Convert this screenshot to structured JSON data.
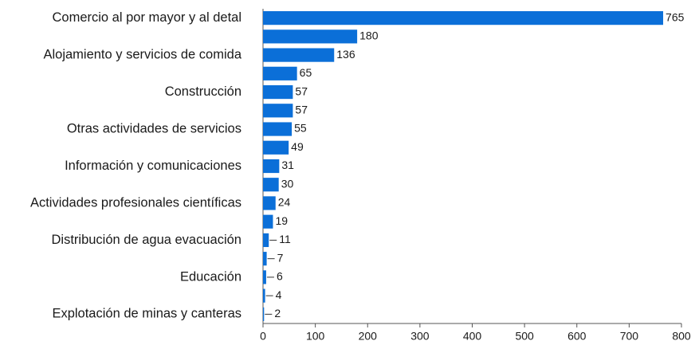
{
  "chart_data": {
    "type": "barh",
    "categories": [
      "Comercio al por mayor y al detal",
      null,
      "Alojamiento y servicios de comida",
      null,
      "Construcción",
      null,
      "Otras actividades de servicios",
      null,
      "Información y comunicaciones",
      null,
      "Actividades profesionales científicas",
      null,
      "Distribución de agua evacuación",
      null,
      "Educación",
      null,
      "Explotación de minas y canteras"
    ],
    "values": [
      765,
      180,
      136,
      65,
      57,
      57,
      55,
      49,
      31,
      30,
      24,
      19,
      11,
      7,
      6,
      4,
      2
    ],
    "color": "#0b6fd8",
    "xlim": [
      0,
      800
    ],
    "xticks": [
      0,
      100,
      200,
      300,
      400,
      500,
      600,
      700,
      800
    ]
  }
}
